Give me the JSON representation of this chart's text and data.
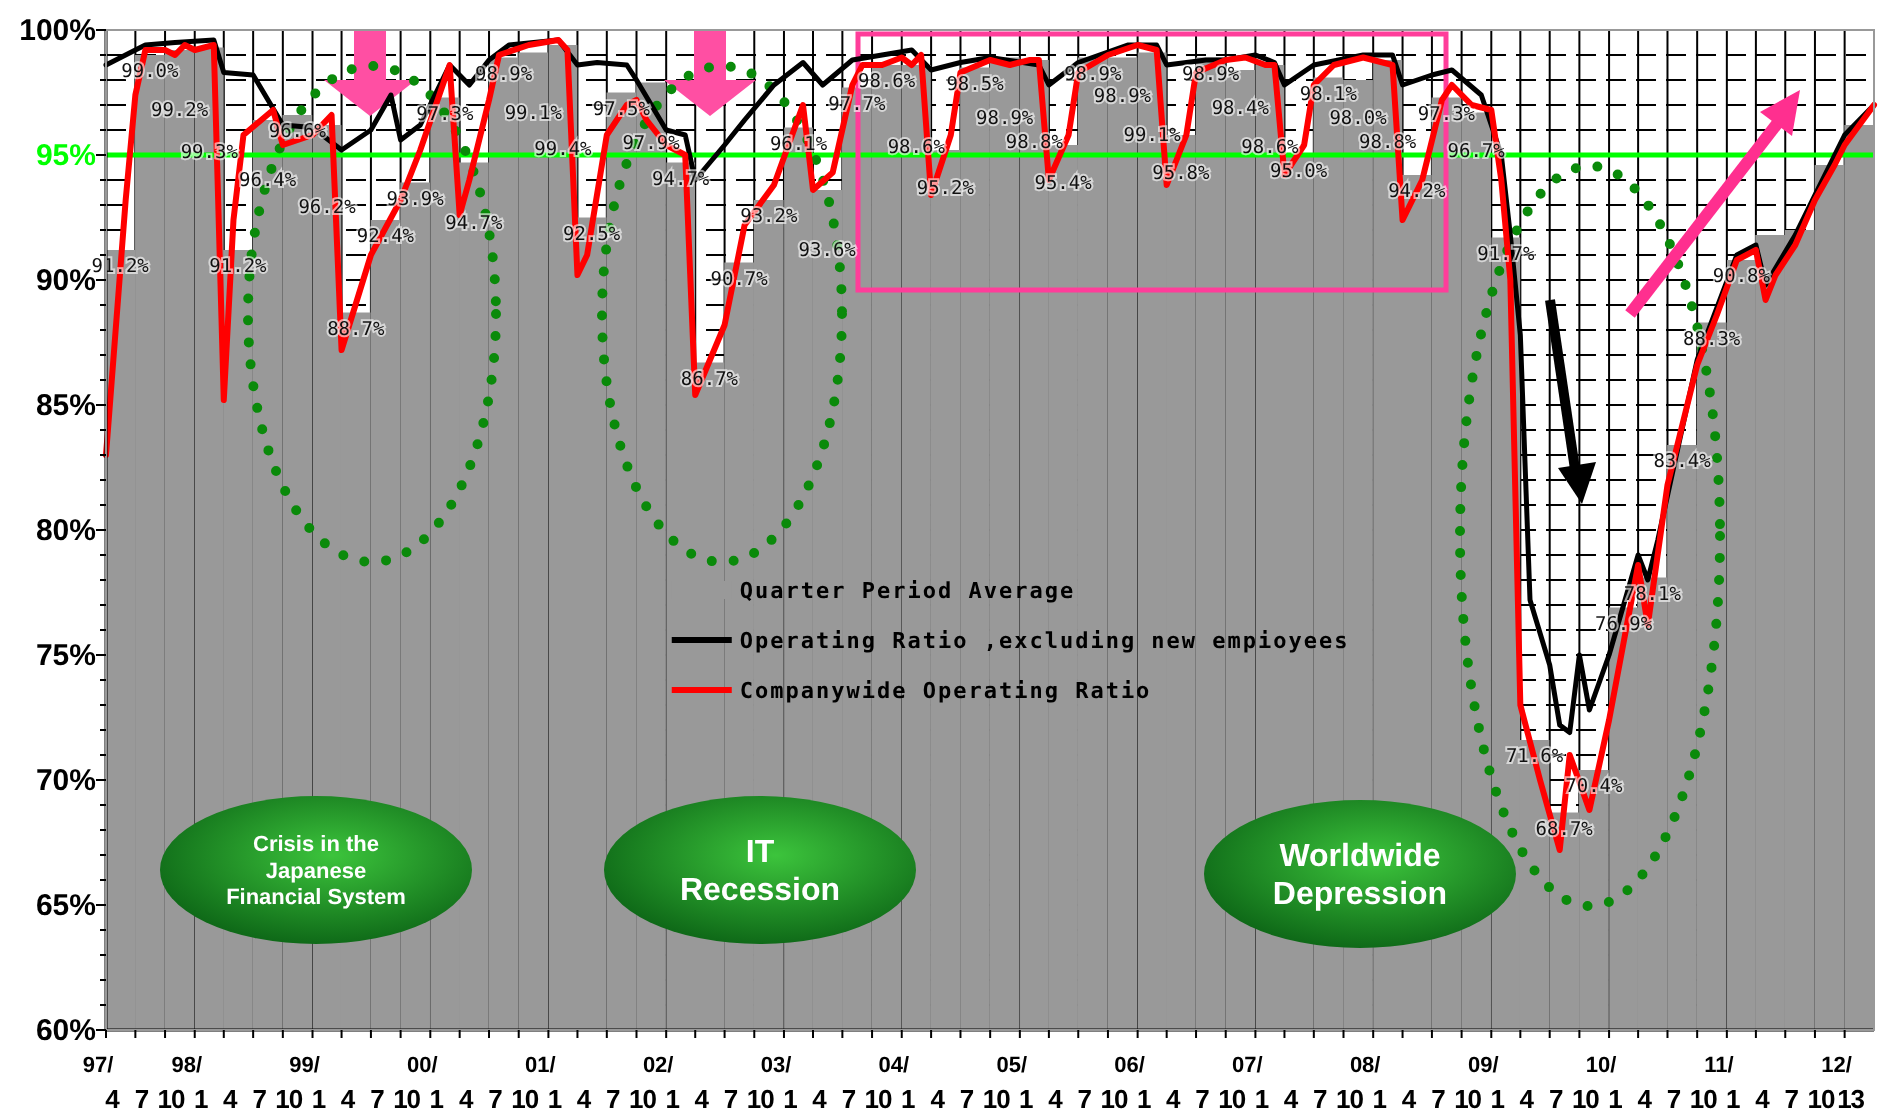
{
  "chart_data": {
    "type": "line",
    "annotations": [
      "Crisis in the Japanese Financial System",
      "IT Recession",
      "Worldwide Depression"
    ],
    "xlim": [
      "1997-04",
      "2012-04"
    ],
    "ylim": [
      60,
      100
    ],
    "yticks": [
      {
        "value": 60,
        "label": "60%"
      },
      {
        "value": 61,
        "label": null
      },
      {
        "value": 62,
        "label": null
      },
      {
        "value": 63,
        "label": null
      },
      {
        "value": 64,
        "label": null
      },
      {
        "value": 65,
        "label": "65%"
      },
      {
        "value": 66,
        "label": null
      },
      {
        "value": 67,
        "label": null
      },
      {
        "value": 68,
        "label": null
      },
      {
        "value": 69,
        "label": null
      },
      {
        "value": 70,
        "label": "70%"
      },
      {
        "value": 71,
        "label": null
      },
      {
        "value": 72,
        "label": null
      },
      {
        "value": 73,
        "label": null
      },
      {
        "value": 74,
        "label": null
      },
      {
        "value": 75,
        "label": "75%"
      },
      {
        "value": 76,
        "label": null
      },
      {
        "value": 77,
        "label": null
      },
      {
        "value": 78,
        "label": null
      },
      {
        "value": 79,
        "label": null
      },
      {
        "value": 80,
        "label": "80%"
      },
      {
        "value": 81,
        "label": null
      },
      {
        "value": 82,
        "label": null
      },
      {
        "value": 83,
        "label": null
      },
      {
        "value": 84,
        "label": null
      },
      {
        "value": 85,
        "label": "85%"
      },
      {
        "value": 86,
        "label": null
      },
      {
        "value": 87,
        "label": null
      },
      {
        "value": 88,
        "label": null
      },
      {
        "value": 89,
        "label": null
      },
      {
        "value": 90,
        "label": "90%"
      },
      {
        "value": 91,
        "label": null
      },
      {
        "value": 92,
        "label": null
      },
      {
        "value": 93,
        "label": null
      },
      {
        "value": 94,
        "label": null
      },
      {
        "value": 95,
        "label": "95%"
      },
      {
        "value": 96,
        "label": null
      },
      {
        "value": 97,
        "label": null
      },
      {
        "value": 98,
        "label": null
      },
      {
        "value": 99,
        "label": null
      },
      {
        "value": 100,
        "label": "100%"
      }
    ],
    "xticks": [
      {
        "value": "1997-04",
        "label": "97/\n4"
      },
      {
        "value": "1997-07",
        "label": "7"
      },
      {
        "value": "1997-10",
        "label": "10"
      },
      {
        "value": "1998-01",
        "label": "98/\n1"
      },
      {
        "value": "1998-04",
        "label": "4"
      },
      {
        "value": "1998-07",
        "label": "7"
      },
      {
        "value": "1998-10",
        "label": "10"
      },
      {
        "value": "1999-01",
        "label": "99/\n1"
      },
      {
        "value": "1999-04",
        "label": "4"
      },
      {
        "value": "1999-07",
        "label": "7"
      },
      {
        "value": "1999-10",
        "label": "10"
      },
      {
        "value": "2000-01",
        "label": "00/\n1"
      },
      {
        "value": "2000-04",
        "label": "4"
      },
      {
        "value": "2000-07",
        "label": "7"
      },
      {
        "value": "2000-10",
        "label": "10"
      },
      {
        "value": "2001-01",
        "label": "01/\n1"
      },
      {
        "value": "2001-04",
        "label": "4"
      },
      {
        "value": "2001-07",
        "label": "7"
      },
      {
        "value": "2001-10",
        "label": "10"
      },
      {
        "value": "2002-01",
        "label": "02/\n1"
      },
      {
        "value": "2002-04",
        "label": "4"
      },
      {
        "value": "2002-07",
        "label": "7"
      },
      {
        "value": "2002-10",
        "label": "10"
      },
      {
        "value": "2003-01",
        "label": "03/\n1"
      },
      {
        "value": "2003-04",
        "label": "4"
      },
      {
        "value": "2003-07",
        "label": "7"
      },
      {
        "value": "2003-10",
        "label": "10"
      },
      {
        "value": "2004-01",
        "label": "04/\n1"
      },
      {
        "value": "2004-04",
        "label": "4"
      },
      {
        "value": "2004-07",
        "label": "7"
      },
      {
        "value": "2004-10",
        "label": "10"
      },
      {
        "value": "2005-01",
        "label": "05/\n1"
      },
      {
        "value": "2005-04",
        "label": "4"
      },
      {
        "value": "2005-07",
        "label": "7"
      },
      {
        "value": "2005-10",
        "label": "10"
      },
      {
        "value": "2006-01",
        "label": "06/\n1"
      },
      {
        "value": "2006-04",
        "label": "4"
      },
      {
        "value": "2006-07",
        "label": "7"
      },
      {
        "value": "2006-10",
        "label": "10"
      },
      {
        "value": "2007-01",
        "label": "07/\n1"
      },
      {
        "value": "2007-04",
        "label": "4"
      },
      {
        "value": "2007-07",
        "label": "7"
      },
      {
        "value": "2007-10",
        "label": "10"
      },
      {
        "value": "2008-01",
        "label": "08/\n1"
      },
      {
        "value": "2008-04",
        "label": "4"
      },
      {
        "value": "2008-07",
        "label": "7"
      },
      {
        "value": "2008-10",
        "label": "10"
      },
      {
        "value": "2009-01",
        "label": "09/\n1"
      },
      {
        "value": "2009-04",
        "label": "4"
      },
      {
        "value": "2009-07",
        "label": "7"
      },
      {
        "value": "2009-10",
        "label": "10"
      },
      {
        "value": "2010-01",
        "label": "10/\n1"
      },
      {
        "value": "2010-04",
        "label": "4"
      },
      {
        "value": "2010-07",
        "label": "7"
      },
      {
        "value": "2010-10",
        "label": "10"
      },
      {
        "value": "2011-01",
        "label": "11/\n1"
      },
      {
        "value": "2011-04",
        "label": "4"
      },
      {
        "value": "2011-07",
        "label": "7"
      },
      {
        "value": "2011-10",
        "label": "10"
      },
      {
        "value": "2012-01",
        "label": "12/\n13"
      }
    ],
    "grid": true,
    "legend": "center",
    "marker": "none",
    "ref_lines": [
      {
        "axis": "y",
        "value": 95,
        "color": "#00ff00"
      }
    ],
    "series": [
      {
        "name": "Quarter Period Average",
        "type": "bar",
        "color": "#999999",
        "x": [
          "1997-05-15",
          "1997-08-15",
          "1997-11-15",
          "1998-02-15",
          "1998-05-15",
          "1998-08-15",
          "1998-11-15",
          "1999-02-15",
          "1999-05-15",
          "1999-08-15",
          "1999-11-15",
          "2000-02-15",
          "2000-05-15",
          "2000-08-15",
          "2000-11-15",
          "2001-02-15",
          "2001-05-15",
          "2001-08-15",
          "2001-11-15",
          "2002-02-15",
          "2002-05-15",
          "2002-08-15",
          "2002-11-15",
          "2003-02-15",
          "2003-05-15",
          "2003-08-15",
          "2003-11-15",
          "2004-02-15",
          "2004-05-15",
          "2004-08-15",
          "2004-11-15",
          "2005-02-15",
          "2005-05-15",
          "2005-08-15",
          "2005-11-15",
          "2006-02-15",
          "2006-05-15",
          "2006-08-15",
          "2006-11-15",
          "2007-02-15",
          "2007-05-15",
          "2007-08-15",
          "2007-11-15",
          "2008-02-15",
          "2008-05-15",
          "2008-08-15",
          "2008-11-15",
          "2009-02-15",
          "2009-05-15",
          "2009-08-15",
          "2009-11-15",
          "2010-02-15",
          "2010-05-15",
          "2010-08-15",
          "2010-11-15",
          "2011-02-15",
          "2011-05-15",
          "2011-08-15",
          "2011-11-15",
          "2012-02-15"
        ],
        "values": [
          91.2,
          99.0,
          99.2,
          99.3,
          91.2,
          96.4,
          96.6,
          96.2,
          88.7,
          92.4,
          93.9,
          97.3,
          94.7,
          98.9,
          99.1,
          99.4,
          92.5,
          97.5,
          97.9,
          94.7,
          86.7,
          90.7,
          93.2,
          96.1,
          93.6,
          97.7,
          98.6,
          98.6,
          95.2,
          98.5,
          98.9,
          98.8,
          95.4,
          98.9,
          98.9,
          99.1,
          95.8,
          98.9,
          98.4,
          98.6,
          95.0,
          98.1,
          98.0,
          98.8,
          94.2,
          97.3,
          96.7,
          91.7,
          71.6,
          68.7,
          70.4,
          76.9,
          78.1,
          83.4,
          88.3,
          90.8,
          91.8,
          92.0,
          94.6,
          96.2
        ],
        "value_labels": [
          "91.2%",
          "99.0%",
          "99.2%",
          "99.3%",
          "91.2%",
          "96.4%",
          "96.6%",
          "96.2%",
          "88.7%",
          "92.4%",
          "93.9%",
          "97.3%",
          "94.7%",
          "98.9%",
          "99.1%",
          "99.4%",
          "92.5%",
          "97.5%",
          "97.9%",
          "94.7%",
          "86.7%",
          "90.7%",
          "93.2%",
          "96.1%",
          "93.6%",
          "97.7%",
          "98.6%",
          "98.6%",
          "95.2%",
          "98.5%",
          "98.9%",
          "98.8%",
          "95.4%",
          "98.9%",
          "98.9%",
          "99.1%",
          "95.8%",
          "98.9%",
          "98.4%",
          "98.6%",
          "95.0%",
          "98.1%",
          "98.0%",
          "98.8%",
          "94.2%",
          "97.3%",
          "96.7%",
          "91.7%",
          "71.6%",
          "68.7%",
          "70.4%",
          "76.9%",
          "78.1%",
          "83.4%",
          "88.3%",
          "90.8%",
          null,
          null,
          null,
          null
        ]
      },
      {
        "name": "Operating Ratio ,excluding new empioyees",
        "color": "#000000",
        "x": [
          "1997-04",
          "1997-07",
          "1997-08",
          "1997-11",
          "1998-03",
          "1998-04",
          "1998-07",
          "1998-10",
          "1999-01",
          "1999-04",
          "1999-07",
          "1999-09",
          "1999-10",
          "1999-12",
          "2000-03",
          "2000-05",
          "2000-07",
          "2000-09",
          "2001-02",
          "2001-04",
          "2001-06",
          "2001-09",
          "2001-10",
          "2002-01",
          "2002-03",
          "2002-04",
          "2002-07",
          "2002-09",
          "2002-12",
          "2003-03",
          "2003-05",
          "2003-08",
          "2004-02",
          "2004-04",
          "2004-07",
          "2004-10",
          "2005-03",
          "2005-04",
          "2005-07",
          "2005-12",
          "2006-03",
          "2006-04",
          "2006-08",
          "2006-10",
          "2007-01",
          "2007-03",
          "2007-04",
          "2007-07",
          "2007-12",
          "2008-03",
          "2008-04",
          "2008-07",
          "2008-09",
          "2008-12",
          "2009-02",
          "2009-03",
          "2009-04",
          "2009-05",
          "2009-07",
          "2009-08",
          "2009-09",
          "2009-10",
          "2009-11",
          "2010-01",
          "2010-04",
          "2010-05",
          "2010-06",
          "2010-10",
          "2011-02",
          "2011-04",
          "2011-05",
          "2011-08",
          "2011-10",
          "2012-01",
          "2012-04"
        ],
        "values": [
          98.6,
          99.2,
          99.4,
          99.5,
          99.6,
          98.3,
          98.2,
          96.2,
          96.1,
          95.2,
          96.0,
          97.4,
          95.6,
          96.2,
          98.6,
          97.8,
          98.8,
          99.4,
          99.6,
          98.6,
          98.7,
          98.6,
          98.0,
          96.0,
          95.8,
          94.0,
          95.4,
          96.4,
          97.8,
          98.7,
          97.8,
          98.8,
          99.2,
          98.4,
          98.7,
          98.9,
          98.6,
          97.8,
          98.7,
          99.4,
          99.4,
          98.6,
          98.8,
          98.8,
          99.0,
          98.7,
          97.8,
          98.6,
          99.0,
          99.0,
          97.8,
          98.2,
          98.4,
          97.4,
          95.0,
          91.8,
          87.8,
          77.2,
          74.6,
          72.2,
          71.9,
          75.0,
          72.8,
          75.0,
          79.0,
          78.0,
          79.6,
          86.8,
          91.0,
          91.4,
          89.8,
          91.8,
          93.4,
          95.8,
          97.0
        ]
      },
      {
        "name": "Companywide Operating Ratio",
        "color": "#ff0000",
        "x": [
          "1997-04",
          "1997-06",
          "1997-07",
          "1997-08",
          "1997-10",
          "1997-11",
          "1997-12",
          "1998-01",
          "1998-03",
          "1998-04",
          "1998-05",
          "1998-06",
          "1998-09",
          "1998-10",
          "1999-01",
          "1999-03",
          "1999-04",
          "1999-07",
          "1999-10",
          "1999-12",
          "2000-03",
          "2000-04",
          "2000-05",
          "2000-07",
          "2000-08",
          "2000-11",
          "2001-02",
          "2001-03",
          "2001-04",
          "2001-05",
          "2001-07",
          "2001-09",
          "2001-10",
          "2001-11",
          "2002-01",
          "2002-03",
          "2002-04",
          "2002-07",
          "2002-09",
          "2002-12",
          "2003-03",
          "2003-04",
          "2003-06",
          "2003-08",
          "2003-09",
          "2003-11",
          "2004-01",
          "2004-02",
          "2004-03",
          "2004-04",
          "2004-06",
          "2004-07",
          "2004-10",
          "2004-12",
          "2005-02",
          "2005-03",
          "2005-04",
          "2005-06",
          "2005-07",
          "2005-10",
          "2006-01",
          "2006-03",
          "2006-04",
          "2006-06",
          "2006-07",
          "2006-10",
          "2006-12",
          "2007-02",
          "2007-03",
          "2007-04",
          "2007-06",
          "2007-07",
          "2007-09",
          "2007-12",
          "2008-03",
          "2008-04",
          "2008-06",
          "2008-08",
          "2008-09",
          "2008-11",
          "2009-01",
          "2009-02",
          "2009-03",
          "2009-04",
          "2009-06",
          "2009-08",
          "2009-09",
          "2009-11",
          "2010-01",
          "2010-04",
          "2010-05",
          "2010-07",
          "2010-10",
          "2010-12",
          "2011-02",
          "2011-04",
          "2011-05",
          "2011-06",
          "2011-08",
          "2011-10",
          "2011-12",
          "2012-01",
          "2012-04"
        ],
        "values": [
          83.0,
          93.2,
          97.4,
          99.2,
          99.2,
          99.0,
          99.4,
          99.2,
          99.4,
          85.2,
          92.4,
          95.8,
          96.8,
          95.4,
          95.8,
          96.6,
          87.2,
          91.0,
          93.2,
          95.2,
          98.6,
          92.6,
          94.0,
          97.2,
          99.0,
          99.4,
          99.6,
          99.2,
          90.2,
          91.0,
          95.8,
          97.0,
          97.2,
          96.4,
          95.4,
          95.0,
          85.4,
          88.2,
          92.2,
          93.8,
          97.0,
          93.6,
          94.3,
          97.8,
          98.6,
          98.6,
          98.9,
          98.6,
          99.0,
          93.4,
          95.8,
          98.3,
          98.8,
          98.6,
          98.8,
          98.8,
          94.0,
          95.8,
          98.3,
          99.0,
          99.4,
          99.2,
          93.8,
          95.8,
          98.3,
          98.8,
          98.9,
          98.6,
          98.6,
          94.2,
          95.4,
          97.8,
          98.6,
          98.9,
          98.6,
          92.4,
          94.0,
          97.2,
          97.8,
          97.0,
          96.8,
          94.0,
          90.0,
          73.0,
          70.0,
          67.2,
          71.0,
          68.8,
          72.4,
          78.6,
          76.2,
          81.8,
          86.6,
          88.6,
          90.8,
          91.2,
          89.2,
          90.2,
          91.4,
          93.2,
          94.6,
          95.4,
          97.0
        ]
      }
    ]
  }
}
